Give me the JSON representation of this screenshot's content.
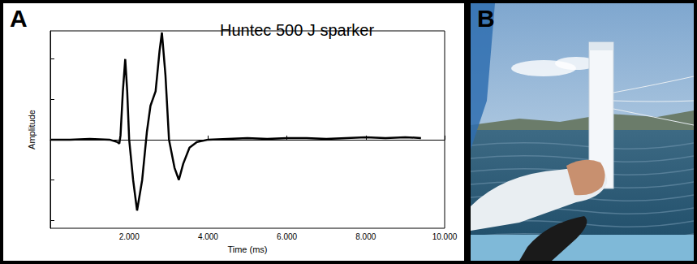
{
  "panel_labels": [
    "A",
    "B"
  ],
  "chart_data": {
    "type": "line",
    "title": "Huntec 500 J sparker",
    "xlabel": "Time (ms)",
    "ylabel": "Amplitude",
    "x": [
      0,
      0.5,
      1.0,
      1.5,
      1.7,
      1.75,
      1.78,
      1.84,
      1.9,
      1.95,
      2.0,
      2.1,
      2.2,
      2.33,
      2.45,
      2.54,
      2.67,
      2.77,
      2.83,
      2.92,
      3.01,
      3.15,
      3.26,
      3.37,
      3.53,
      3.72,
      4.0,
      4.5,
      5.0,
      5.5,
      6.0,
      6.5,
      7.0,
      7.5,
      8.0,
      8.5,
      9.0,
      9.4
    ],
    "series": [
      {
        "name": "Huntec 500 J sparker",
        "color": "#000000",
        "values": [
          0,
          0,
          0.01,
          0,
          -0.03,
          -0.05,
          0.05,
          0.6,
          1.0,
          0.6,
          0.0,
          -0.5,
          -0.88,
          -0.5,
          0.1,
          0.42,
          0.6,
          1.1,
          1.33,
          0.8,
          0.0,
          -0.35,
          -0.5,
          -0.3,
          -0.1,
          -0.03,
          0.0,
          0.01,
          0.02,
          0.01,
          0.02,
          0.02,
          0.01,
          0.02,
          0.03,
          0.02,
          0.03,
          0.02
        ]
      }
    ],
    "xlim": [
      0,
      10
    ],
    "xticks": [
      {
        "value": 2,
        "label": "2.000"
      },
      {
        "value": 4,
        "label": "4.000"
      },
      {
        "value": 6,
        "label": "6.000"
      },
      {
        "value": 8,
        "label": "8.000"
      },
      {
        "value": 10,
        "label": "10.000"
      }
    ],
    "ylim": [
      -1.1,
      1.35
    ],
    "yticks": [
      -1,
      -0.5,
      0,
      0.5,
      1
    ],
    "grid": false,
    "tick_labels": "x"
  }
}
